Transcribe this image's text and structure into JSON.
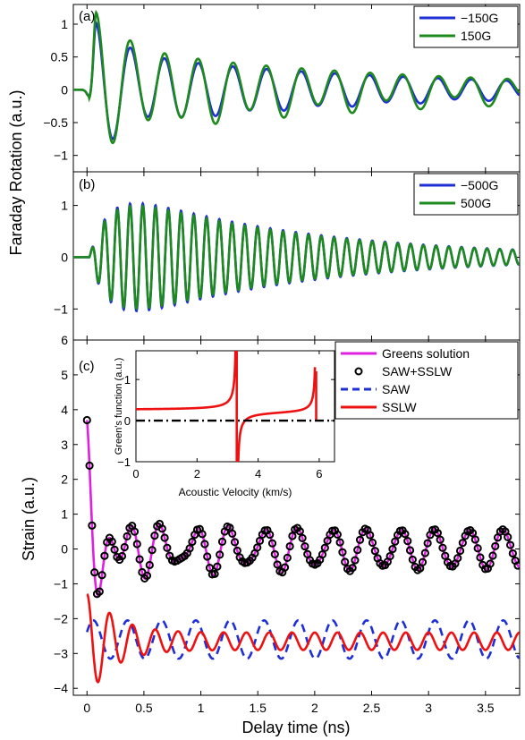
{
  "figure": {
    "shared_ylabel": "Faraday Rotation (a.u.)",
    "colors": {
      "blue": "#1f2fd6",
      "green": "#1e8a1e",
      "magenta": "#e020e0",
      "red": "#ee1111",
      "black": "#000000"
    }
  },
  "chart_data": [
    {
      "type": "line",
      "panel_label": "(a)",
      "xlim": [
        -0.12,
        3.8
      ],
      "ylim": [
        -1.25,
        1.3
      ],
      "yticks": [
        -1,
        -0.5,
        0,
        0.5,
        1
      ],
      "ytick_labels": [
        "−1",
        "−0.5",
        "0",
        "0.5",
        "1"
      ],
      "legend": {
        "position": "top-right",
        "entries": [
          "−150G",
          "150G"
        ]
      },
      "series": [
        {
          "name": "−150G",
          "color": "#1f2fd6",
          "model": {
            "t0": 0.08,
            "period": 0.3,
            "amp": [
              1.02,
              0.58,
              0.5,
              0.36
            ],
            "decay": 0,
            "extra": [],
            "kick": {
              "amp": 0.32,
              "center": 0.13,
              "width": 0.06
            }
          }
        },
        {
          "name": "150G",
          "color": "#1e8a1e",
          "model": {
            "t0": 0.08,
            "period": 0.3,
            "amp": [
              1.18,
              0.72,
              0.62,
              0.4
            ],
            "decay": 0,
            "extra": [],
            "kick": {
              "amp": 0.32,
              "center": 0.13,
              "width": 0.06
            }
          }
        }
      ]
    },
    {
      "type": "line",
      "panel_label": "(b)",
      "xlim": [
        -0.12,
        3.8
      ],
      "ylim": [
        -1.6,
        1.65
      ],
      "yticks": [
        -1,
        0,
        1
      ],
      "ytick_labels": [
        "−1",
        "0",
        "1"
      ],
      "legend": {
        "position": "top-right",
        "entries": [
          "−500G",
          "500G"
        ]
      },
      "series": [
        {
          "name": "−500G",
          "color": "#1f2fd6",
          "model": {
            "t0": 0.07,
            "period": 0.112,
            "amp": [
              1.45
            ],
            "decay": 0.62,
            "rise": 0.18
          }
        },
        {
          "name": "500G",
          "color": "#1e8a1e",
          "model": {
            "t0": 0.07,
            "period": 0.112,
            "amp": [
              1.38
            ],
            "decay": 0.62,
            "rise": 0.18
          }
        }
      ]
    },
    {
      "type": "line",
      "panel_label": "(c)",
      "xlim": [
        -0.12,
        3.8
      ],
      "ylim": [
        -4.2,
        6
      ],
      "ylabel": "Strain (a.u.)",
      "xlabel": "Delay time (ns)",
      "yticks": [
        -4,
        -3,
        -2,
        -1,
        0,
        1,
        2,
        3,
        4,
        5,
        6
      ],
      "ytick_labels": [
        "−4",
        "−3",
        "−2",
        "−1",
        "0",
        "1",
        "2",
        "3",
        "4",
        "5",
        "6"
      ],
      "xticks": [
        0,
        0.5,
        1,
        1.5,
        2,
        2.5,
        3,
        3.5
      ],
      "xtick_labels": [
        "0",
        "0.5",
        "1",
        "1.5",
        "2",
        "2.5",
        "3",
        "3.5"
      ],
      "legend": {
        "position": "top-right",
        "entries": [
          "Greens solution",
          "SAW+SSLW",
          "SAW",
          "SSLW"
        ]
      },
      "series": [
        {
          "name": "Greens solution",
          "color": "#e020e0",
          "style": "solid"
        },
        {
          "name": "SAW+SSLW",
          "color": "#000000",
          "style": "circles"
        },
        {
          "name": "SAW",
          "color": "#1f2fd6",
          "style": "dashed",
          "offset": -2.6,
          "amp": 0.55,
          "period": 0.3
        },
        {
          "name": "SSLW",
          "color": "#ee1111",
          "style": "solid",
          "offset": -2.65,
          "amp": 1.4,
          "period": 0.2
        }
      ]
    },
    {
      "type": "line",
      "role": "inset",
      "xlim": [
        0,
        6.5
      ],
      "ylim": [
        -1,
        1.7
      ],
      "xticks": [
        0,
        2,
        4,
        6
      ],
      "xtick_labels": [
        "0",
        "2",
        "4",
        "6"
      ],
      "yticks": [
        -1,
        0,
        1
      ],
      "ytick_labels": [
        "−1",
        "0",
        "1"
      ],
      "xlabel": "Acoustic Velocity (km/s)",
      "ylabel": "Green's function (a.u.)",
      "series": [
        {
          "color": "#ee1111",
          "style": "solid",
          "poles": [
            3.3,
            5.9
          ]
        },
        {
          "color": "#000000",
          "style": "dashdot",
          "y": 0
        }
      ]
    }
  ]
}
